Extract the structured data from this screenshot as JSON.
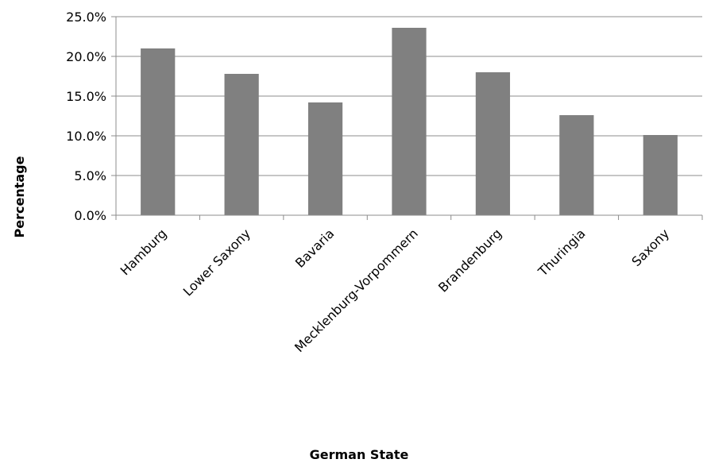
{
  "chart_data": {
    "type": "bar",
    "title": "",
    "xlabel": "German State",
    "ylabel": "Percentage",
    "categories": [
      "Hamburg",
      "Lower Saxony",
      "Bavaria",
      "Mecklenburg-Vorpommern",
      "Brandenburg",
      "Thuringia",
      "Saxony"
    ],
    "values": [
      21.0,
      17.8,
      14.2,
      23.6,
      18.0,
      12.6,
      10.1
    ],
    "ylim": [
      0,
      25
    ],
    "yticks": [
      0,
      5,
      10,
      15,
      20,
      25
    ],
    "ytick_labels": [
      "0.0%",
      "5.0%",
      "10.0%",
      "15.0%",
      "20.0%",
      "25.0%"
    ],
    "grid": true,
    "legend": "none",
    "colors": {
      "bar": "#808080",
      "grid": "#8c8c8c",
      "axis": "#8c8c8c"
    }
  }
}
